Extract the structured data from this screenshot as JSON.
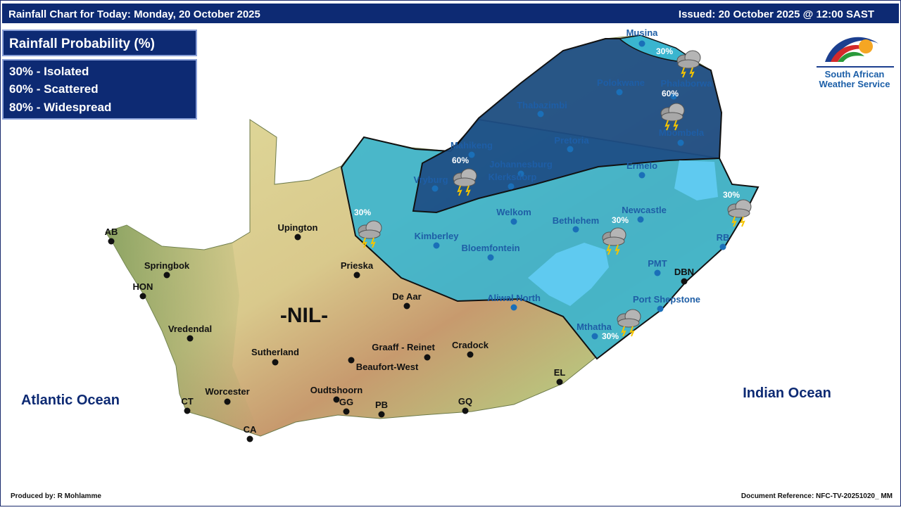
{
  "header": {
    "title": "Rainfall Chart for Today: Monday, 20 October 2025",
    "issued": "Issued: 20 October 2025 @ 12:00 SAST"
  },
  "legend": {
    "title": "Rainfall Probability (%)",
    "items": [
      "30% - Isolated",
      "60% - Scattered",
      "80% - Widespread"
    ]
  },
  "logo": {
    "line1": "South African",
    "line2": "Weather Service"
  },
  "map": {
    "no_rain_label": "-NIL-",
    "oceans": [
      "Atlantic Ocean",
      "Indian Ocean"
    ],
    "probabilities": [
      "30%",
      "60%",
      "60%",
      "30%",
      "30%",
      "30%",
      "30%"
    ],
    "cities": [
      "Musina",
      "Polokwane",
      "Phalaborwa",
      "Thabazimbi",
      "Mbombela",
      "Mahikeng",
      "Pretoria",
      "Johannesburg",
      "Klerksdorp",
      "Vryburg",
      "Ermelo",
      "Welkom",
      "Bethlehem",
      "Newcastle",
      "Kimberley",
      "Bloemfontein",
      "RB",
      "PMT",
      "DBN",
      "Port Shepstone",
      "Aliwal North",
      "Mthatha",
      "Upington",
      "Prieska",
      "AB",
      "Springbok",
      "HON",
      "Vredendal",
      "De Aar",
      "Sutherland",
      "Graaff - Reinet",
      "Beaufort-West",
      "Cradock",
      "EL",
      "Worcester",
      "Oudtshoorn",
      "CT",
      "GG",
      "PB",
      "GQ",
      "CA"
    ]
  },
  "footer": {
    "producer": "Produced by: R Mohlamme",
    "reference": "Document Reference: NFC-TV-20251020_ MM"
  }
}
